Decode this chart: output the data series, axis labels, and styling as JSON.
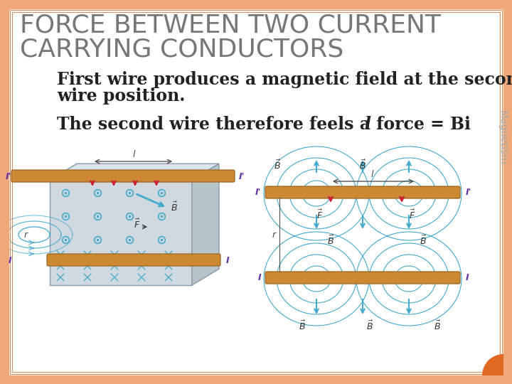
{
  "title_line1": "FORCE BETWEEN TWO CURRENT",
  "title_line2": "CARRYING CONDUCTORS",
  "title_color": "#777777",
  "title_fontsize": 26,
  "body_text1": "First wire produces a magnetic field at the second",
  "body_text1b": "wire position.",
  "body_text2": "The second wire therefore feels a force = Bi",
  "body_italic": "l",
  "body_fontsize": 17,
  "body_color": "#222222",
  "side_text": "Magnetism",
  "side_fontsize": 10,
  "side_color": "#aaaaaa",
  "bg_color": "#ffffff",
  "border_color": "#f0a878",
  "border_width": 12,
  "accent_color": "#e06820",
  "wire_color": "#cc8833",
  "wire_edge": "#996622",
  "field_color": "#44aacc",
  "dot_color": "#44aacc",
  "arrow_red": "#cc2233",
  "label_purple": "#6633aa",
  "dim_color": "#444444",
  "b_label_color": "#333333",
  "box_front": "#d0d8e0",
  "box_top": "#dde4ec",
  "box_right": "#b8c4cc",
  "box_edge": "#8899aa",
  "fig_width": 7.2,
  "fig_height": 5.4,
  "dpi": 100
}
